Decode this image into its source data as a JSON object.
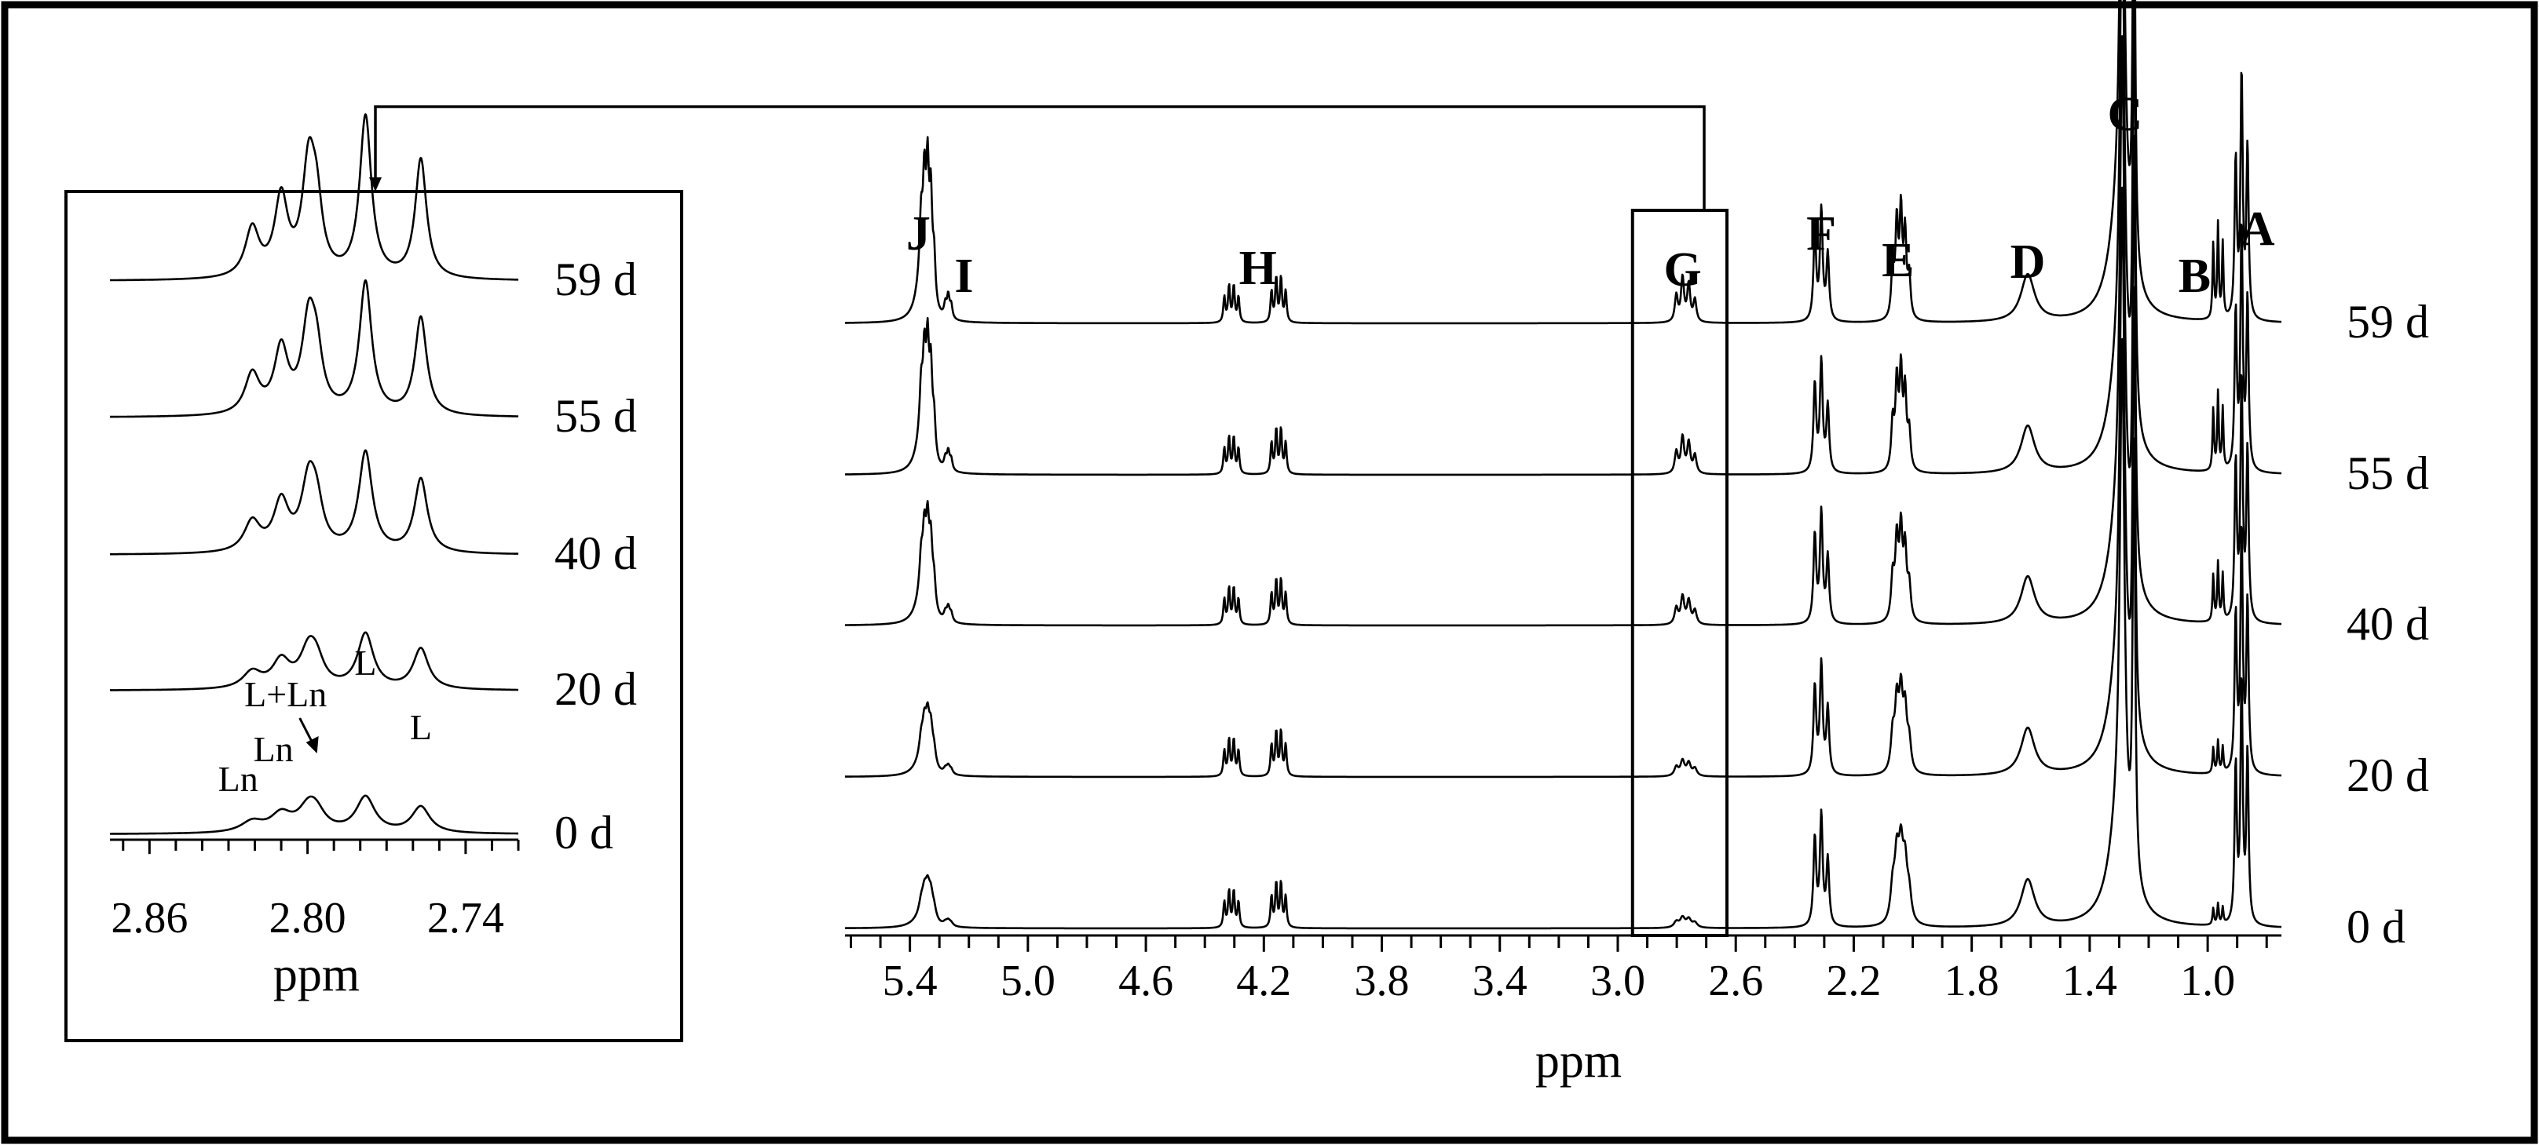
{
  "chart_data": [
    {
      "type": "line",
      "panel": "main spectrum",
      "xlabel": "ppm",
      "x_reversed": true,
      "xlim": [
        5.62,
        0.75
      ],
      "xticks": [
        5.4,
        5.0,
        4.6,
        4.2,
        3.8,
        3.4,
        3.0,
        2.6,
        2.2,
        1.8,
        1.4,
        1.0
      ],
      "xtick_labels": [
        "5.4",
        "5.0",
        "4.6",
        "4.2",
        "3.8",
        "3.4",
        "3.0",
        "2.6",
        "2.2",
        "1.8",
        "1.4",
        "1.0"
      ],
      "series": [
        {
          "name": "59 d"
        },
        {
          "name": "55 d"
        },
        {
          "name": "40 d"
        },
        {
          "name": "20 d"
        },
        {
          "name": "0 d"
        }
      ],
      "peak_labels": [
        {
          "label": "J",
          "ppm": 5.35
        },
        {
          "label": "I",
          "ppm": 5.27
        },
        {
          "label": "H",
          "ppm": 4.22
        },
        {
          "label": "G",
          "ppm": 2.78
        },
        {
          "label": "F",
          "ppm": 2.31
        },
        {
          "label": "E",
          "ppm": 2.05
        },
        {
          "label": "D",
          "ppm": 1.61
        },
        {
          "label": "C",
          "ppm": 1.28
        },
        {
          "label": "B",
          "ppm": 0.97
        },
        {
          "label": "A",
          "ppm": 0.88
        }
      ],
      "highlight_box": {
        "label": "G",
        "from_ppm": 2.95,
        "to_ppm": 2.63
      }
    },
    {
      "type": "line",
      "panel": "inset",
      "xlabel": "ppm",
      "x_reversed": true,
      "xlim": [
        2.875,
        2.72
      ],
      "xticks": [
        2.86,
        2.8,
        2.74
      ],
      "xtick_labels": [
        "2.86",
        "2.80",
        "2.74"
      ],
      "series": [
        {
          "name": "59 d"
        },
        {
          "name": "55 d"
        },
        {
          "name": "40 d"
        },
        {
          "name": "20 d"
        },
        {
          "name": "0 d"
        }
      ],
      "peak_labels": [
        {
          "label": "Ln",
          "ppm": 2.821
        },
        {
          "label": "Ln",
          "ppm": 2.81
        },
        {
          "label": "L+Ln",
          "ppm": 2.797
        },
        {
          "label": "L",
          "ppm": 2.778
        },
        {
          "label": "L",
          "ppm": 2.757
        }
      ]
    }
  ]
}
